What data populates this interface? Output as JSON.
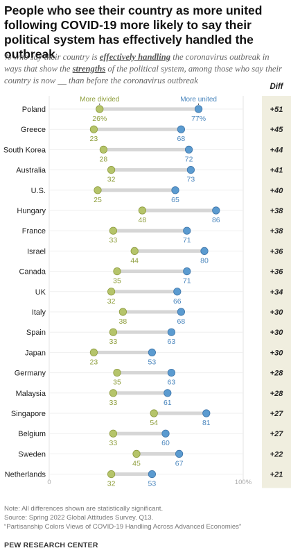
{
  "title": "People who see their country as more united following COVID-19 more likely to say their political system has effectively handled the outbreak",
  "subtitle": {
    "p1": "% who say their country is ",
    "b1": "effectively handling",
    "p2": " the coronavirus outbreak in ways that show the ",
    "b2": "strengths",
    "p3": " of the political system, among those who say their country is now __ than before the coronavirus outbreak"
  },
  "legend": {
    "divided": "More divided",
    "united": "More united",
    "diff": "Diff"
  },
  "colors": {
    "divided": "#b5c46a",
    "united": "#5b9bd0",
    "divided_text": "#8e9e3c",
    "united_text": "#4a86bd",
    "bar": "#d6d6d6",
    "diff_bg": "#f0eedf"
  },
  "chart_data": {
    "type": "dot",
    "xlim": [
      0,
      100
    ],
    "x_ticks": [
      "0",
      "100%"
    ],
    "categories": [
      "Poland",
      "Greece",
      "South Korea",
      "Australia",
      "U.S.",
      "Hungary",
      "France",
      "Israel",
      "Canada",
      "UK",
      "Italy",
      "Spain",
      "Japan",
      "Germany",
      "Malaysia",
      "Singapore",
      "Belgium",
      "Sweden",
      "Netherlands"
    ],
    "series": [
      {
        "name": "More divided",
        "values": [
          26,
          23,
          28,
          32,
          25,
          48,
          33,
          44,
          35,
          32,
          38,
          33,
          23,
          35,
          33,
          54,
          33,
          45,
          32
        ]
      },
      {
        "name": "More united",
        "values": [
          77,
          68,
          72,
          73,
          65,
          86,
          71,
          80,
          71,
          66,
          68,
          63,
          53,
          63,
          61,
          81,
          60,
          67,
          53
        ]
      }
    ],
    "diff_label": "Diff",
    "diff": [
      "+51",
      "+45",
      "+44",
      "+41",
      "+40",
      "+38",
      "+38",
      "+36",
      "+36",
      "+34",
      "+30",
      "+30",
      "+30",
      "+28",
      "+28",
      "+27",
      "+27",
      "+22",
      "+21"
    ],
    "first_row_labels": [
      "26%",
      "77%"
    ]
  },
  "footer": {
    "note": "Note: All differences shown are statistically significant.",
    "source": "Source: Spring 2022 Global Attitudes Survey. Q13.",
    "report": "“Partisanship Colors Views of COVID-19 Handling Across Advanced Economies”"
  },
  "brand": "PEW RESEARCH CENTER"
}
